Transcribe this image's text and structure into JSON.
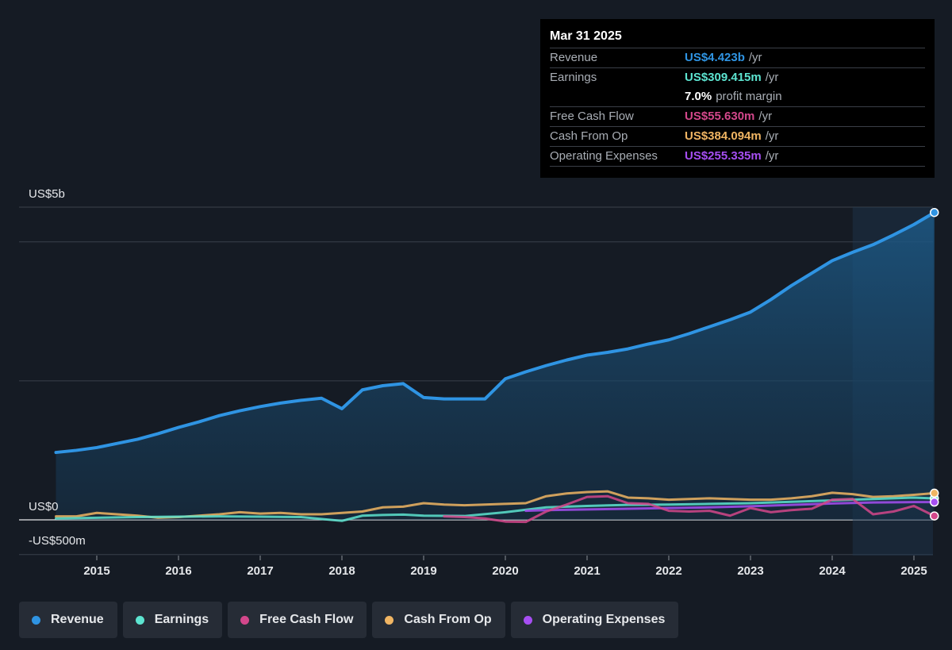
{
  "tooltip": {
    "date": "Mar 31 2025",
    "rows": [
      {
        "label": "Revenue",
        "value": "US$4.423b",
        "unit": "/yr",
        "color": "#2f94e3"
      },
      {
        "label": "Earnings",
        "value": "US$309.415m",
        "unit": "/yr",
        "color": "#5de4d0"
      },
      {
        "label": "",
        "value": "7.0%",
        "unit": "profit margin",
        "color": "#ffffff"
      },
      {
        "label": "Free Cash Flow",
        "value": "US$55.630m",
        "unit": "/yr",
        "color": "#d3478b"
      },
      {
        "label": "Cash From Op",
        "value": "US$384.094m",
        "unit": "/yr",
        "color": "#f0b563"
      },
      {
        "label": "Operating Expenses",
        "value": "US$255.335m",
        "unit": "/yr",
        "color": "#a64ef2"
      }
    ]
  },
  "legend": [
    {
      "label": "Revenue",
      "color": "#2f94e3"
    },
    {
      "label": "Earnings",
      "color": "#5de4d0"
    },
    {
      "label": "Free Cash Flow",
      "color": "#d3478b"
    },
    {
      "label": "Cash From Op",
      "color": "#f0b563"
    },
    {
      "label": "Operating Expenses",
      "color": "#a64ef2"
    }
  ],
  "chart_data": {
    "type": "line",
    "ylim": [
      -500,
      4500
    ],
    "y_tick_labels": [
      {
        "value": 4500,
        "label": "US$5b"
      },
      {
        "value": 0,
        "label": "US$0"
      },
      {
        "value": -500,
        "label": "-US$500m"
      }
    ],
    "x_ticks": [
      2015,
      2016,
      2017,
      2018,
      2019,
      2020,
      2021,
      2022,
      2023,
      2024,
      2025
    ],
    "x_tick_labels": [
      "2015",
      "2016",
      "2017",
      "2018",
      "2019",
      "2020",
      "2021",
      "2022",
      "2023",
      "2024",
      "2025"
    ],
    "highlight_from": 2024.25,
    "series": [
      {
        "name": "Revenue",
        "color": "#2f94e3",
        "x": [
          2014.5,
          2014.75,
          2015,
          2015.25,
          2015.5,
          2015.75,
          2016,
          2016.25,
          2016.5,
          2016.75,
          2017,
          2017.25,
          2017.5,
          2017.75,
          2018,
          2018.25,
          2018.5,
          2018.75,
          2019,
          2019.25,
          2019.5,
          2019.75,
          2020,
          2020.25,
          2020.5,
          2020.75,
          2021,
          2021.25,
          2021.5,
          2021.75,
          2022,
          2022.25,
          2022.5,
          2022.75,
          2023,
          2023.25,
          2023.5,
          2023.75,
          2024,
          2024.25,
          2024.5,
          2024.75,
          2025,
          2025.25
        ],
        "values": [
          970,
          1000,
          1040,
          1100,
          1160,
          1240,
          1330,
          1410,
          1500,
          1570,
          1630,
          1680,
          1720,
          1750,
          1600,
          1870,
          1930,
          1960,
          1760,
          1740,
          1740,
          1740,
          2030,
          2130,
          2220,
          2300,
          2370,
          2410,
          2460,
          2530,
          2590,
          2680,
          2780,
          2880,
          2990,
          3170,
          3370,
          3550,
          3730,
          3850,
          3960,
          4100,
          4250,
          4423
        ]
      },
      {
        "name": "Earnings",
        "color": "#5de4d0",
        "x": [
          2014.5,
          2015,
          2015.5,
          2016,
          2016.5,
          2017,
          2017.5,
          2018,
          2018.25,
          2018.5,
          2018.75,
          2019,
          2019.5,
          2020,
          2020.5,
          2021,
          2021.5,
          2022,
          2022.5,
          2023,
          2023.5,
          2024,
          2024.5,
          2025,
          2025.25
        ],
        "values": [
          20,
          30,
          40,
          45,
          50,
          45,
          40,
          -15,
          60,
          70,
          75,
          60,
          55,
          110,
          180,
          200,
          215,
          220,
          230,
          240,
          260,
          280,
          300,
          320,
          309
        ]
      },
      {
        "name": "Free Cash Flow",
        "color": "#d3478b",
        "x": [
          2019.25,
          2019.5,
          2019.75,
          2020,
          2020.25,
          2020.5,
          2020.75,
          2021,
          2021.25,
          2021.5,
          2021.75,
          2022,
          2022.25,
          2022.5,
          2022.75,
          2023,
          2023.25,
          2023.5,
          2023.75,
          2024,
          2024.25,
          2024.5,
          2024.75,
          2025,
          2025.25
        ],
        "values": [
          50,
          40,
          20,
          -25,
          -30,
          120,
          220,
          330,
          340,
          240,
          230,
          130,
          120,
          130,
          60,
          170,
          110,
          140,
          160,
          290,
          300,
          80,
          120,
          200,
          56
        ]
      },
      {
        "name": "Cash From Op",
        "color": "#f0b563",
        "x": [
          2014.5,
          2014.75,
          2015,
          2015.25,
          2015.5,
          2015.75,
          2016,
          2016.25,
          2016.5,
          2016.75,
          2017,
          2017.25,
          2017.5,
          2017.75,
          2018,
          2018.25,
          2018.5,
          2018.75,
          2019,
          2019.25,
          2019.5,
          2019.75,
          2020,
          2020.25,
          2020.5,
          2020.75,
          2021,
          2021.25,
          2021.5,
          2021.75,
          2022,
          2022.25,
          2022.5,
          2022.75,
          2023,
          2023.25,
          2023.5,
          2023.75,
          2024,
          2024.25,
          2024.5,
          2024.75,
          2025,
          2025.25
        ],
        "values": [
          50,
          50,
          100,
          80,
          60,
          30,
          40,
          60,
          80,
          110,
          90,
          100,
          80,
          80,
          100,
          120,
          180,
          190,
          240,
          220,
          210,
          220,
          230,
          240,
          340,
          380,
          400,
          410,
          320,
          310,
          290,
          300,
          310,
          300,
          290,
          290,
          310,
          340,
          390,
          370,
          330,
          340,
          360,
          384
        ]
      },
      {
        "name": "Operating Expenses",
        "color": "#a64ef2",
        "x": [
          2020.25,
          2020.5,
          2021,
          2021.5,
          2022,
          2022.5,
          2023,
          2023.5,
          2024,
          2024.5,
          2025,
          2025.25
        ],
        "values": [
          130,
          140,
          150,
          160,
          170,
          180,
          195,
          215,
          235,
          250,
          255,
          255
        ]
      }
    ]
  }
}
